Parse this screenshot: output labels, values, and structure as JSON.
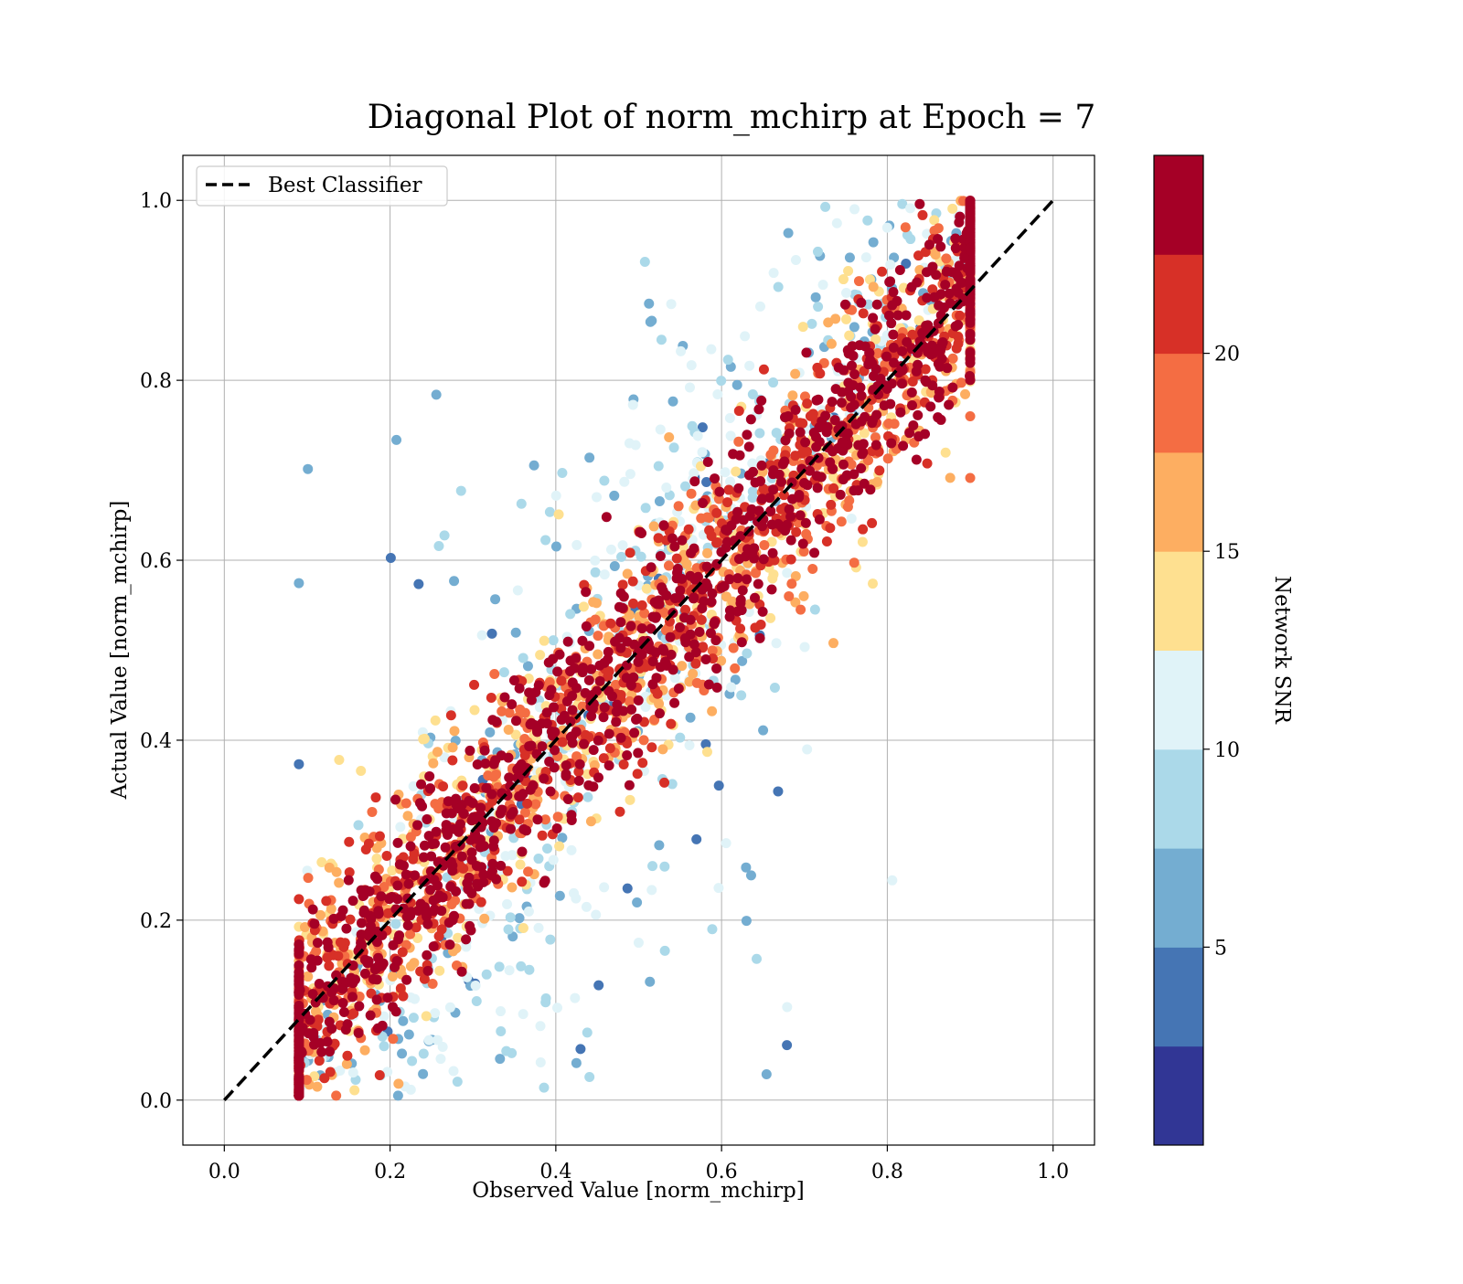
{
  "chart_data": {
    "type": "scatter",
    "title": "Diagonal Plot of norm_mchirp at Epoch = 7",
    "xlabel": "Observed Value [norm_mchirp]",
    "ylabel": "Actual Value [norm_mchirp]",
    "xlim": [
      -0.05,
      1.05
    ],
    "ylim": [
      -0.05,
      1.05
    ],
    "x_ticks": [
      "0.0",
      "0.2",
      "0.4",
      "0.6",
      "0.8",
      "1.0"
    ],
    "y_ticks": [
      "0.0",
      "0.2",
      "0.4",
      "0.6",
      "0.8",
      "1.0"
    ],
    "grid": true,
    "legend": {
      "placement": "top-left",
      "entries": [
        "Best Classifier"
      ]
    },
    "reference_line": {
      "name": "Best Classifier",
      "style": "dashed",
      "color": "#000000",
      "x": [
        0,
        1
      ],
      "y": [
        0,
        1
      ]
    },
    "colorbar": {
      "label": "Network SNR",
      "range": [
        0,
        25
      ],
      "ticks": [
        "5",
        "10",
        "15",
        "20"
      ],
      "colors": [
        "#313695",
        "#4575b4",
        "#74add1",
        "#abd9e9",
        "#e0f3f8",
        "#fee090",
        "#fdae61",
        "#f46d43",
        "#d73027",
        "#a50026"
      ],
      "boundaries": [
        0,
        2.5,
        5,
        7.5,
        10,
        12.5,
        15,
        17.5,
        20,
        22.5,
        25
      ]
    },
    "point_summary": {
      "high_snr_band_halfwidth": 0.09,
      "low_snr_clusters": [
        {
          "x_center": 0.43,
          "y_center": 0.88
        },
        {
          "x_center": 0.45,
          "y_center": 0.1
        }
      ]
    }
  }
}
